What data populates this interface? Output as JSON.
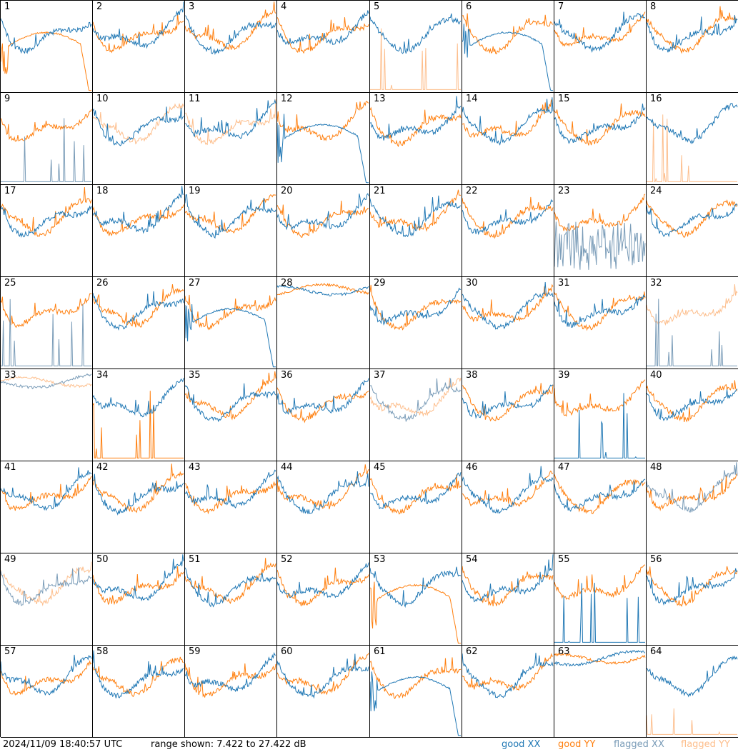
{
  "footer": {
    "timestamp": "2024/11/09 18:40:57 UTC",
    "range_text": "range shown: 7.422 to 27.422 dB"
  },
  "legend": [
    {
      "label": "good XX",
      "color": "#1f77b4"
    },
    {
      "label": "good YY",
      "color": "#ff7f0e"
    },
    {
      "label": "flagged XX",
      "color": "#7a9cb8"
    },
    {
      "label": "flagged YY",
      "color": "#fdbe8c"
    }
  ],
  "chart_data": {
    "type": "line",
    "ylim": [
      7.422,
      27.422
    ],
    "yunit": "dB",
    "grid": false,
    "legend_placement": "bottom-right",
    "panels": [
      {
        "id": "1",
        "xx": "good",
        "yy": "good",
        "xx_shape": "normal",
        "yy_shape": "smooth_drop"
      },
      {
        "id": "2",
        "xx": "good",
        "yy": "good",
        "xx_shape": "normal",
        "yy_shape": "normal"
      },
      {
        "id": "3",
        "xx": "good",
        "yy": "good",
        "xx_shape": "normal",
        "yy_shape": "normal"
      },
      {
        "id": "4",
        "xx": "good",
        "yy": "good",
        "xx_shape": "normal",
        "yy_shape": "normal"
      },
      {
        "id": "5",
        "xx": "good",
        "yy": "flagged",
        "xx_shape": "normal",
        "yy_shape": "spikes"
      },
      {
        "id": "6",
        "xx": "good",
        "yy": "good",
        "xx_shape": "smooth_drop",
        "yy_shape": "normal"
      },
      {
        "id": "7",
        "xx": "good",
        "yy": "good",
        "xx_shape": "normal",
        "yy_shape": "normal"
      },
      {
        "id": "8",
        "xx": "good",
        "yy": "good",
        "xx_shape": "normal",
        "yy_shape": "normal"
      },
      {
        "id": "9",
        "xx": "flagged",
        "yy": "good",
        "xx_shape": "spikes",
        "yy_shape": "normal"
      },
      {
        "id": "10",
        "xx": "good",
        "yy": "flagged",
        "xx_shape": "normal",
        "yy_shape": "normal"
      },
      {
        "id": "11",
        "xx": "good",
        "yy": "flagged",
        "xx_shape": "normal",
        "yy_shape": "normal"
      },
      {
        "id": "12",
        "xx": "good",
        "yy": "good",
        "xx_shape": "smooth_drop",
        "yy_shape": "normal"
      },
      {
        "id": "13",
        "xx": "good",
        "yy": "good",
        "xx_shape": "normal",
        "yy_shape": "normal"
      },
      {
        "id": "14",
        "xx": "good",
        "yy": "good",
        "xx_shape": "normal",
        "yy_shape": "normal"
      },
      {
        "id": "15",
        "xx": "good",
        "yy": "good",
        "xx_shape": "normal",
        "yy_shape": "normal"
      },
      {
        "id": "16",
        "xx": "good",
        "yy": "flagged",
        "xx_shape": "normal",
        "yy_shape": "spikes"
      },
      {
        "id": "17",
        "xx": "good",
        "yy": "good",
        "xx_shape": "normal",
        "yy_shape": "normal"
      },
      {
        "id": "18",
        "xx": "good",
        "yy": "good",
        "xx_shape": "normal",
        "yy_shape": "normal"
      },
      {
        "id": "19",
        "xx": "good",
        "yy": "good",
        "xx_shape": "normal",
        "yy_shape": "normal"
      },
      {
        "id": "20",
        "xx": "good",
        "yy": "good",
        "xx_shape": "normal",
        "yy_shape": "normal"
      },
      {
        "id": "21",
        "xx": "good",
        "yy": "good",
        "xx_shape": "normal",
        "yy_shape": "normal"
      },
      {
        "id": "22",
        "xx": "good",
        "yy": "good",
        "xx_shape": "normal",
        "yy_shape": "normal"
      },
      {
        "id": "23",
        "xx": "flagged",
        "yy": "good",
        "xx_shape": "noisy_low",
        "yy_shape": "normal"
      },
      {
        "id": "24",
        "xx": "good",
        "yy": "good",
        "xx_shape": "normal",
        "yy_shape": "normal"
      },
      {
        "id": "25",
        "xx": "flagged",
        "yy": "good",
        "xx_shape": "spikes",
        "yy_shape": "normal"
      },
      {
        "id": "26",
        "xx": "good",
        "yy": "good",
        "xx_shape": "normal",
        "yy_shape": "normal"
      },
      {
        "id": "27",
        "xx": "good",
        "yy": "good",
        "xx_shape": "smooth_drop",
        "yy_shape": "normal"
      },
      {
        "id": "28",
        "xx": "good",
        "yy": "good",
        "xx_shape": "flat_high",
        "yy_shape": "flat_high"
      },
      {
        "id": "29",
        "xx": "good",
        "yy": "good",
        "xx_shape": "normal",
        "yy_shape": "normal"
      },
      {
        "id": "30",
        "xx": "good",
        "yy": "good",
        "xx_shape": "normal",
        "yy_shape": "normal"
      },
      {
        "id": "31",
        "xx": "good",
        "yy": "good",
        "xx_shape": "normal",
        "yy_shape": "normal"
      },
      {
        "id": "32",
        "xx": "flagged",
        "yy": "flagged",
        "xx_shape": "spikes",
        "yy_shape": "normal"
      },
      {
        "id": "33",
        "xx": "flagged",
        "yy": "flagged",
        "xx_shape": "flat_high",
        "yy_shape": "flat_high"
      },
      {
        "id": "34",
        "xx": "good",
        "yy": "good",
        "xx_shape": "normal",
        "yy_shape": "spikes"
      },
      {
        "id": "35",
        "xx": "good",
        "yy": "good",
        "xx_shape": "normal",
        "yy_shape": "normal"
      },
      {
        "id": "36",
        "xx": "good",
        "yy": "good",
        "xx_shape": "normal",
        "yy_shape": "normal"
      },
      {
        "id": "37",
        "xx": "flagged",
        "yy": "flagged",
        "xx_shape": "normal",
        "yy_shape": "normal"
      },
      {
        "id": "38",
        "xx": "good",
        "yy": "good",
        "xx_shape": "normal",
        "yy_shape": "normal"
      },
      {
        "id": "39",
        "xx": "good",
        "yy": "good",
        "xx_shape": "spikes",
        "yy_shape": "normal"
      },
      {
        "id": "40",
        "xx": "good",
        "yy": "good",
        "xx_shape": "normal",
        "yy_shape": "normal"
      },
      {
        "id": "41",
        "xx": "good",
        "yy": "good",
        "xx_shape": "normal",
        "yy_shape": "normal"
      },
      {
        "id": "42",
        "xx": "good",
        "yy": "good",
        "xx_shape": "normal",
        "yy_shape": "normal"
      },
      {
        "id": "43",
        "xx": "good",
        "yy": "good",
        "xx_shape": "normal",
        "yy_shape": "normal"
      },
      {
        "id": "44",
        "xx": "good",
        "yy": "good",
        "xx_shape": "normal",
        "yy_shape": "normal"
      },
      {
        "id": "45",
        "xx": "good",
        "yy": "good",
        "xx_shape": "normal",
        "yy_shape": "normal"
      },
      {
        "id": "46",
        "xx": "good",
        "yy": "good",
        "xx_shape": "normal",
        "yy_shape": "normal"
      },
      {
        "id": "47",
        "xx": "good",
        "yy": "good",
        "xx_shape": "normal",
        "yy_shape": "normal"
      },
      {
        "id": "48",
        "xx": "flagged",
        "yy": "good",
        "xx_shape": "normal",
        "yy_shape": "normal"
      },
      {
        "id": "49",
        "xx": "flagged",
        "yy": "flagged",
        "xx_shape": "normal",
        "yy_shape": "normal"
      },
      {
        "id": "50",
        "xx": "good",
        "yy": "good",
        "xx_shape": "normal",
        "yy_shape": "normal"
      },
      {
        "id": "51",
        "xx": "good",
        "yy": "good",
        "xx_shape": "normal",
        "yy_shape": "normal"
      },
      {
        "id": "52",
        "xx": "good",
        "yy": "good",
        "xx_shape": "normal",
        "yy_shape": "normal"
      },
      {
        "id": "53",
        "xx": "good",
        "yy": "good",
        "xx_shape": "normal",
        "yy_shape": "smooth_drop"
      },
      {
        "id": "54",
        "xx": "good",
        "yy": "good",
        "xx_shape": "normal",
        "yy_shape": "normal"
      },
      {
        "id": "55",
        "xx": "good",
        "yy": "good",
        "xx_shape": "spikes",
        "yy_shape": "normal"
      },
      {
        "id": "56",
        "xx": "good",
        "yy": "good",
        "xx_shape": "normal",
        "yy_shape": "normal"
      },
      {
        "id": "57",
        "xx": "good",
        "yy": "good",
        "xx_shape": "normal",
        "yy_shape": "normal"
      },
      {
        "id": "58",
        "xx": "good",
        "yy": "good",
        "xx_shape": "normal",
        "yy_shape": "normal"
      },
      {
        "id": "59",
        "xx": "good",
        "yy": "good",
        "xx_shape": "normal",
        "yy_shape": "normal"
      },
      {
        "id": "60",
        "xx": "good",
        "yy": "good",
        "xx_shape": "normal",
        "yy_shape": "normal"
      },
      {
        "id": "61",
        "xx": "good",
        "yy": "good",
        "xx_shape": "smooth_drop",
        "yy_shape": "normal"
      },
      {
        "id": "62",
        "xx": "good",
        "yy": "good",
        "xx_shape": "normal",
        "yy_shape": "normal"
      },
      {
        "id": "63",
        "xx": "good",
        "yy": "good",
        "xx_shape": "flat_high",
        "yy_shape": "flat_high"
      },
      {
        "id": "64",
        "xx": "good",
        "yy": "flagged",
        "xx_shape": "normal",
        "yy_shape": "spikes"
      }
    ]
  }
}
